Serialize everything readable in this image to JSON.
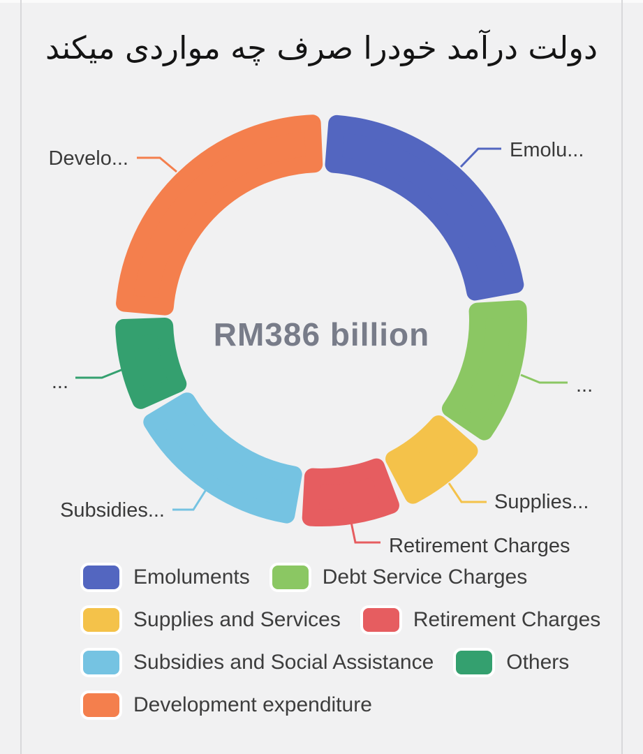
{
  "page": {
    "title": "دولت درآمد خودرا صرف چه مواردی میکند"
  },
  "chart_data": {
    "type": "pie",
    "variant": "donut",
    "title": "دولت درآمد خودرا صرف چه مواردی میکند",
    "center_label": "RM386 billion",
    "total": 386,
    "unit": "RM billion",
    "start_angle_deg": 1,
    "grid": false,
    "legend_position": "bottom",
    "series": [
      {
        "name": "Emoluments",
        "value": 88,
        "color": "#5366c0",
        "callout_label": "Emolu..."
      },
      {
        "name": "Debt Service Charges",
        "value": 48,
        "color": "#8bc763",
        "callout_label": "..."
      },
      {
        "name": "Supplies and Services",
        "value": 30,
        "color": "#f4c24a",
        "callout_label": "Supplies..."
      },
      {
        "name": "Retirement Charges",
        "value": 33,
        "color": "#e65d60",
        "callout_label": "Retirement Charges"
      },
      {
        "name": "Subsidies and Social Assistance",
        "value": 60,
        "color": "#75c3e2",
        "callout_label": "Subsidies..."
      },
      {
        "name": "Others",
        "value": 31,
        "color": "#34a06f",
        "callout_label": "..."
      },
      {
        "name": "Development expenditure",
        "value": 96,
        "color": "#f47f4d",
        "callout_label": "Develo..."
      }
    ]
  }
}
